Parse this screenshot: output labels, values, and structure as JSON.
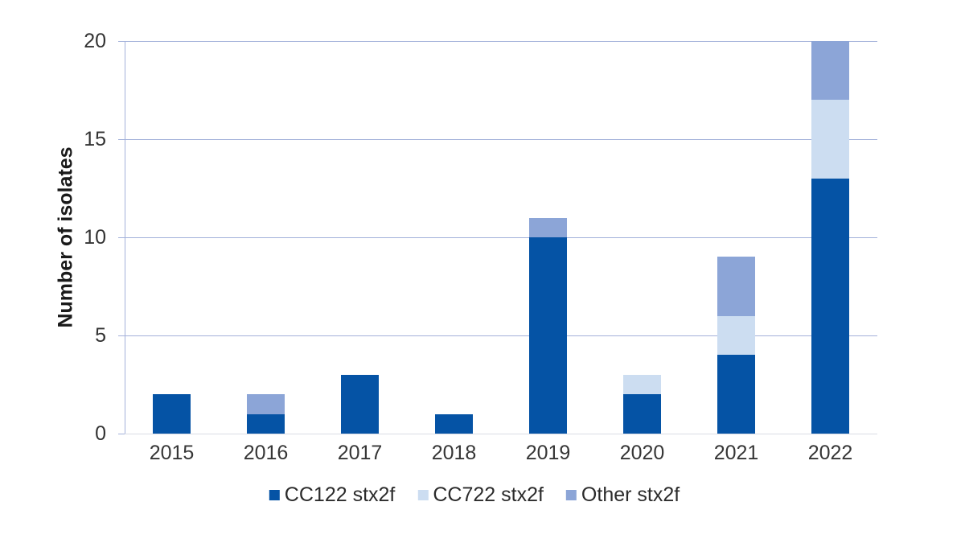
{
  "figure": {
    "background": "#FFFFFF"
  },
  "chart_data": {
    "type": "bar",
    "stacked": true,
    "title": "",
    "categories": [
      "2015",
      "2016",
      "2017",
      "2018",
      "2019",
      "2020",
      "2021",
      "2022"
    ],
    "series": [
      {
        "name": "CC122 stx2f",
        "color": "#0553A5",
        "values": [
          2,
          1,
          3,
          1,
          10,
          2,
          4,
          13
        ]
      },
      {
        "name": "CC722 stx2f",
        "color": "#CCDDF1",
        "values": [
          0,
          0,
          0,
          0,
          0,
          1,
          2,
          4
        ]
      },
      {
        "name": "Other stx2f",
        "color": "#8CA5D7",
        "values": [
          0,
          1,
          0,
          0,
          1,
          0,
          3,
          3
        ]
      }
    ],
    "totals": [
      2,
      2,
      3,
      1,
      11,
      3,
      9,
      20
    ],
    "xlabel": "",
    "ylabel": "Number of isolates",
    "ylim": [
      0,
      20
    ],
    "yticks": [
      0,
      5,
      10,
      15,
      20
    ],
    "grid": true,
    "legend_position": "bottom",
    "colors": {
      "gridline": "#A3B1DA",
      "axis_line": "#A3B1DA",
      "baseline": "#D9DCE4",
      "tick": "#A3B1DA",
      "text": "#333333"
    }
  }
}
